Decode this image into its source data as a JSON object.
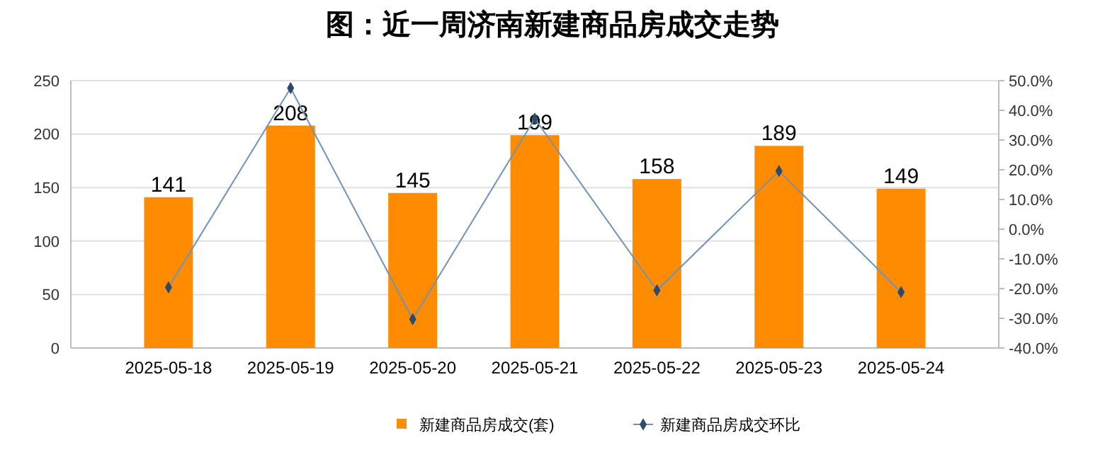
{
  "chart_data": {
    "type": "bar",
    "title": "图：近一周济南新建商品房成交走势",
    "categories": [
      "2025-05-18",
      "2025-05-19",
      "2025-05-20",
      "2025-05-21",
      "2025-05-22",
      "2025-05-23",
      "2025-05-24"
    ],
    "series": [
      {
        "name": "新建商品房成交(套)",
        "color": "#ff8c00",
        "values": [
          141,
          208,
          145,
          199,
          158,
          189,
          149
        ],
        "value_labels": [
          "141",
          "208",
          "145",
          "199",
          "158",
          "189",
          "149"
        ]
      },
      {
        "name": "新建商品房成交环比",
        "type": "line",
        "axis": "y2",
        "color": "#6f93b8",
        "marker": "diamond",
        "values": [
          -19.6,
          47.5,
          -30.3,
          37.2,
          -20.6,
          19.6,
          -21.2
        ]
      }
    ],
    "ylim": [
      0,
      250
    ],
    "yticks": [
      0,
      50,
      100,
      150,
      200,
      250
    ],
    "y2lim": [
      -40,
      50
    ],
    "y2ticks": [
      {
        "value": -40,
        "label": "-40.0%"
      },
      {
        "value": -30,
        "label": "-30.0%"
      },
      {
        "value": -20,
        "label": "-20.0%"
      },
      {
        "value": -10,
        "label": "-10.0%"
      },
      {
        "value": 0,
        "label": "0.0%"
      },
      {
        "value": 10,
        "label": "10.0%"
      },
      {
        "value": 20,
        "label": "20.0%"
      },
      {
        "value": 30,
        "label": "30.0%"
      },
      {
        "value": 40,
        "label": "40.0%"
      },
      {
        "value": 50,
        "label": "50.0%"
      }
    ],
    "grid": "y",
    "legend": "bottom"
  }
}
